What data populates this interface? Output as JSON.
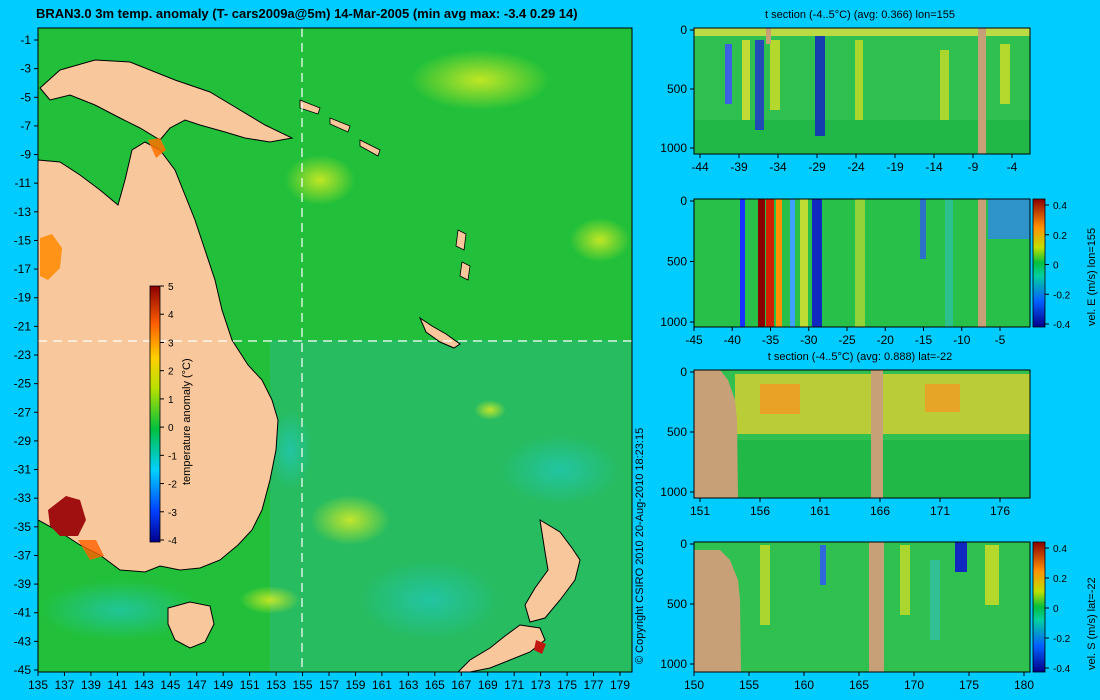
{
  "map": {
    "title": "BRAN3.0 3m temp. anomaly (T- cars2009a@5m) 14-Mar-2005 (min avg max: -3.4 0.29 14)",
    "x_ticks": [
      "135",
      "137",
      "139",
      "141",
      "143",
      "145",
      "147",
      "149",
      "151",
      "153",
      "155",
      "157",
      "159",
      "161",
      "163",
      "165",
      "167",
      "169",
      "171",
      "173",
      "175",
      "177",
      "179"
    ],
    "y_ticks": [
      "-1",
      "-3",
      "-5",
      "-7",
      "-9",
      "-11",
      "-13",
      "-15",
      "-17",
      "-19",
      "-21",
      "-23",
      "-25",
      "-27",
      "-29",
      "-31",
      "-33",
      "-35",
      "-37",
      "-39",
      "-41",
      "-43",
      "-45"
    ],
    "colorbar": {
      "label": "temperature anomaly (°C)",
      "ticks": [
        "5",
        "4",
        "3",
        "2",
        "1",
        "0",
        "-1",
        "-2",
        "-3",
        "-4"
      ]
    },
    "copyright": "© Copyright CSIRO 2010   20-Aug-2010 18:23:15",
    "colors": {
      "ocean": "#22c03a",
      "land": "#f8c89c",
      "crosshair": "#ffffff"
    }
  },
  "panels": {
    "p1": {
      "title": "t section (-4..5°C) (avg: 0.366) lon=155",
      "y_ticks": [
        "0",
        "500",
        "1000"
      ],
      "x_ticks": [
        "-44",
        "-39",
        "-34",
        "-29",
        "-24",
        "-19",
        "-14",
        "-9",
        "-4"
      ]
    },
    "p2": {
      "title": "",
      "y_ticks": [
        "0",
        "500",
        "1000"
      ],
      "x_ticks": [
        "-45",
        "-40",
        "-35",
        "-30",
        "-25",
        "-20",
        "-15",
        "-10",
        "-5"
      ],
      "colorbar_label": "vel. E (m/s) lon=155",
      "colorbar_ticks": [
        "0.4",
        "0.2",
        "0",
        "-0.2",
        "-0.4"
      ]
    },
    "p3": {
      "title": "t section (-4..5°C) (avg: 0.888) lat=-22",
      "y_ticks": [
        "0",
        "500",
        "1000"
      ],
      "x_ticks": [
        "151",
        "156",
        "161",
        "166",
        "171",
        "176"
      ]
    },
    "p4": {
      "title": "",
      "y_ticks": [
        "0",
        "500",
        "1000"
      ],
      "x_ticks": [
        "150",
        "155",
        "160",
        "165",
        "170",
        "175",
        "180"
      ],
      "colorbar_label": "vel. S (m/s) lat=-22",
      "colorbar_ticks": [
        "0.4",
        "0.2",
        "0",
        "-0.2",
        "-0.4"
      ]
    }
  },
  "chart_data": [
    {
      "type": "heatmap",
      "title": "BRAN3.0 3m temp. anomaly (T- cars2009a@5m) 14-Mar-2005 (min avg max: -3.4 0.29 14)",
      "xlim": [
        135,
        180
      ],
      "ylim": [
        -45,
        0
      ],
      "colorbar_range": [
        -4,
        5
      ],
      "colorbar_label": "temperature anomaly (°C)",
      "crosshair": {
        "lon": 155,
        "lat": -22
      },
      "summary": {
        "min": -3.4,
        "avg": 0.29,
        "max": 14
      }
    },
    {
      "type": "heatmap",
      "title": "t section (-4..5°C) (avg: 0.366) lon=155",
      "xlim": [
        -45,
        0
      ],
      "ylim": [
        1050,
        0
      ],
      "color_range": [
        -4,
        5
      ],
      "avg": 0.366
    },
    {
      "type": "heatmap",
      "xlim": [
        -45,
        0
      ],
      "ylim": [
        1050,
        0
      ],
      "color_range": [
        -0.4,
        0.4
      ],
      "colorbar_label": "vel. E (m/s) lon=155"
    },
    {
      "type": "heatmap",
      "title": "t section (-4..5°C) (avg: 0.888) lat=-22",
      "xlim": [
        150,
        180
      ],
      "ylim": [
        1050,
        0
      ],
      "color_range": [
        -4,
        5
      ],
      "avg": 0.888
    },
    {
      "type": "heatmap",
      "xlim": [
        150,
        180
      ],
      "ylim": [
        1050,
        0
      ],
      "color_range": [
        -0.4,
        0.4
      ],
      "colorbar_label": "vel. S (m/s) lat=-22"
    }
  ]
}
